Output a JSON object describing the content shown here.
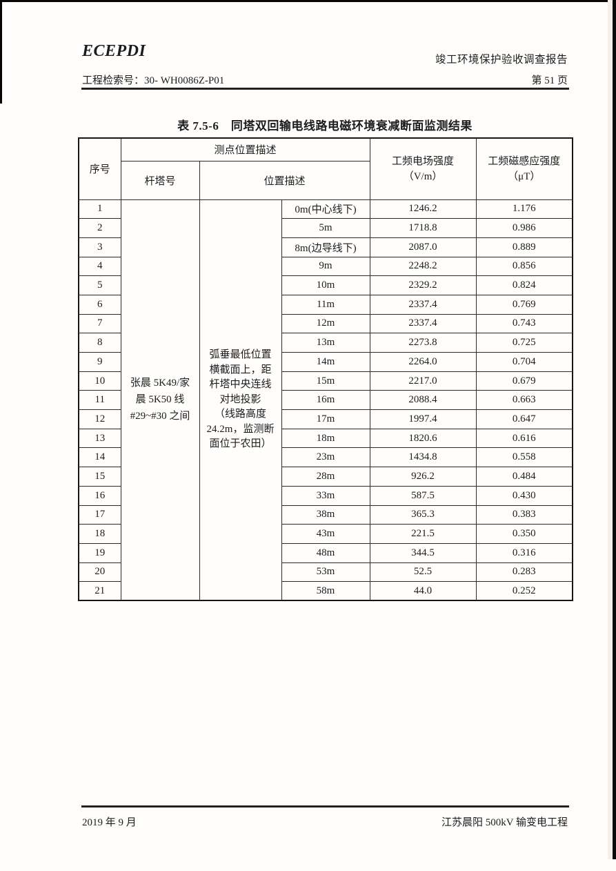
{
  "header": {
    "logo": "ECEPDI",
    "report_title": "竣工环境保护验收调查报告",
    "doc_index": "工程检索号：30- WH0086Z-P01",
    "page_no": "第 51 页"
  },
  "table": {
    "title": "表 7.5-6　同塔双回输电线路电磁环境衰减断面监测结果",
    "col_headers": {
      "index": "序号",
      "location_group": "测点位置描述",
      "tower": "杆塔号",
      "position": "位置描述",
      "efield": [
        "工频电场强度",
        "（V/m）"
      ],
      "bfield": [
        "工频磁感应强度",
        "（μT）"
      ]
    },
    "tower_lines": [
      "张晨 5K49/家",
      "晨 5K50 线",
      "#29~#30 之间"
    ],
    "position_lines": [
      "弧垂最低位置",
      "横截面上，距",
      "杆塔中央连线",
      "对地投影",
      "（线路高度",
      "24.2m，监测断",
      "面位于农田）"
    ],
    "rows": [
      {
        "no": "1",
        "pos": "0m(中心线下)",
        "e": "1246.2",
        "b": "1.176"
      },
      {
        "no": "2",
        "pos": "5m",
        "e": "1718.8",
        "b": "0.986"
      },
      {
        "no": "3",
        "pos": "8m(边导线下)",
        "e": "2087.0",
        "b": "0.889"
      },
      {
        "no": "4",
        "pos": "9m",
        "e": "2248.2",
        "b": "0.856"
      },
      {
        "no": "5",
        "pos": "10m",
        "e": "2329.2",
        "b": "0.824"
      },
      {
        "no": "6",
        "pos": "11m",
        "e": "2337.4",
        "b": "0.769"
      },
      {
        "no": "7",
        "pos": "12m",
        "e": "2337.4",
        "b": "0.743"
      },
      {
        "no": "8",
        "pos": "13m",
        "e": "2273.8",
        "b": "0.725"
      },
      {
        "no": "9",
        "pos": "14m",
        "e": "2264.0",
        "b": "0.704"
      },
      {
        "no": "10",
        "pos": "15m",
        "e": "2217.0",
        "b": "0.679"
      },
      {
        "no": "11",
        "pos": "16m",
        "e": "2088.4",
        "b": "0.663"
      },
      {
        "no": "12",
        "pos": "17m",
        "e": "1997.4",
        "b": "0.647"
      },
      {
        "no": "13",
        "pos": "18m",
        "e": "1820.6",
        "b": "0.616"
      },
      {
        "no": "14",
        "pos": "23m",
        "e": "1434.8",
        "b": "0.558"
      },
      {
        "no": "15",
        "pos": "28m",
        "e": "926.2",
        "b": "0.484"
      },
      {
        "no": "16",
        "pos": "33m",
        "e": "587.5",
        "b": "0.430"
      },
      {
        "no": "17",
        "pos": "38m",
        "e": "365.3",
        "b": "0.383"
      },
      {
        "no": "18",
        "pos": "43m",
        "e": "221.5",
        "b": "0.350"
      },
      {
        "no": "19",
        "pos": "48m",
        "e": "344.5",
        "b": "0.316"
      },
      {
        "no": "20",
        "pos": "53m",
        "e": "52.5",
        "b": "0.283"
      },
      {
        "no": "21",
        "pos": "58m",
        "e": "44.0",
        "b": "0.252"
      }
    ]
  },
  "footer": {
    "left": "2019 年 9 月",
    "right": "江苏晨阳 500kV 输变电工程"
  }
}
